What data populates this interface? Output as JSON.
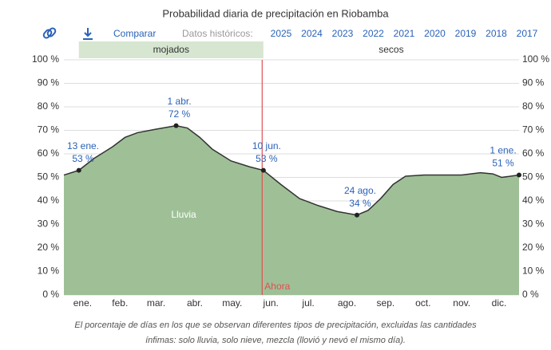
{
  "chart_data": {
    "type": "area",
    "title": "Probabilidad diaria de precipitación en Riobamba",
    "toolbar": {
      "compare": "Comparar",
      "history": "Datos históricos:",
      "years": [
        "2025",
        "2024",
        "2023",
        "2022",
        "2021",
        "2020",
        "2019",
        "2018",
        "2017"
      ]
    },
    "periods": [
      {
        "label": "mojados",
        "start": 13,
        "end": 161
      },
      {
        "label": "secos",
        "start": 161,
        "end": 366
      }
    ],
    "now": {
      "x": 160,
      "label": "Ahora"
    },
    "series": [
      {
        "name": "lluvia",
        "color": "#9fc097",
        "x": [
          1,
          13,
          25,
          40,
          50,
          60,
          75,
          91,
          100,
          110,
          120,
          135,
          150,
          161,
          175,
          190,
          205,
          220,
          236,
          245,
          255,
          265,
          275,
          290,
          305,
          320,
          335,
          345,
          352,
          366
        ],
        "values": [
          51,
          53,
          58,
          63,
          67,
          69,
          70.5,
          72,
          71,
          67,
          62,
          57,
          54.5,
          53,
          47,
          41,
          38,
          35.5,
          34,
          36,
          41,
          47,
          50.5,
          51,
          51,
          51,
          52,
          51.5,
          50,
          51
        ]
      }
    ],
    "annotations": [
      {
        "x": 13,
        "date": "13 ene.",
        "value": 53,
        "value_label": "53 %"
      },
      {
        "x": 91,
        "date": "1 abr.",
        "value": 72,
        "value_label": "72 %"
      },
      {
        "x": 161,
        "date": "10 jun.",
        "value": 53,
        "value_label": "53 %"
      },
      {
        "x": 236,
        "date": "24 ago.",
        "value": 34,
        "value_label": "34 %"
      },
      {
        "x": 366,
        "date": "1 ene.",
        "value": 51,
        "value_label": "51 %"
      }
    ],
    "xlim": [
      1,
      366
    ],
    "xticks": [
      {
        "value": 16,
        "label": "ene."
      },
      {
        "value": 46,
        "label": "feb."
      },
      {
        "value": 75,
        "label": "mar."
      },
      {
        "value": 106,
        "label": "abr."
      },
      {
        "value": 136,
        "label": "may."
      },
      {
        "value": 167,
        "label": "jun."
      },
      {
        "value": 197,
        "label": "jul."
      },
      {
        "value": 228,
        "label": "ago."
      },
      {
        "value": 259,
        "label": "sep."
      },
      {
        "value": 289,
        "label": "oct."
      },
      {
        "value": 320,
        "label": "nov."
      },
      {
        "value": 350,
        "label": "dic."
      }
    ],
    "ylim": [
      0,
      100
    ],
    "yticks": [
      {
        "value": 0,
        "label": "0 %"
      },
      {
        "value": 10,
        "label": "10 %"
      },
      {
        "value": 20,
        "label": "20 %"
      },
      {
        "value": 30,
        "label": "30 %"
      },
      {
        "value": 40,
        "label": "40 %"
      },
      {
        "value": 50,
        "label": "50 %"
      },
      {
        "value": 60,
        "label": "60 %"
      },
      {
        "value": 70,
        "label": "70 %"
      },
      {
        "value": 80,
        "label": "80 %"
      },
      {
        "value": 90,
        "label": "90 %"
      },
      {
        "value": 100,
        "label": "100 %"
      }
    ],
    "grid": true,
    "caption": [
      "El porcentaje de días en los que se observan diferentes tipos de precipitación, excluidas las cantidades",
      "ínfimas: solo lluvia, solo nieve, mezcla (llovió y nevó el mismo día)."
    ]
  }
}
